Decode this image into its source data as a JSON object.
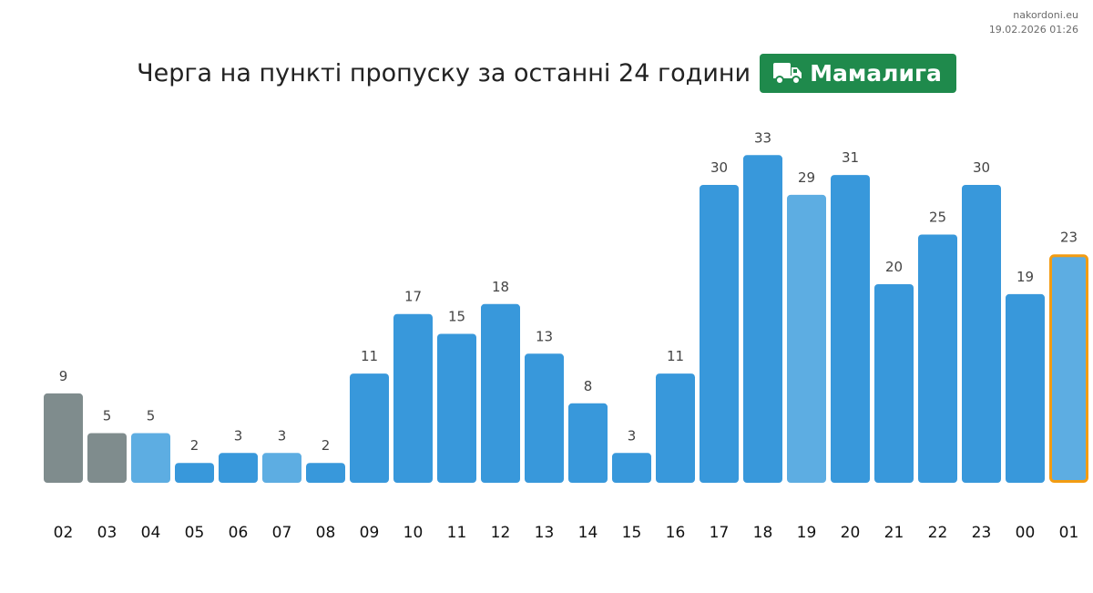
{
  "source": {
    "site": "nakordoni.eu",
    "timestamp": "19.02.2026 01:26"
  },
  "header": {
    "title": "Черга на пункті пропуску за останні 24 години",
    "badge_label": "Мамалига",
    "badge_icon": "truck-icon"
  },
  "colors": {
    "default": "#3898db",
    "light": "#5dade2",
    "past": "#7f8c8d",
    "highlight_border": "#f39c12",
    "badge_bg": "#1f8a4c"
  },
  "chart_data": {
    "type": "bar",
    "title": "Черга на пункті пропуску за останні 24 години",
    "xlabel": "",
    "ylabel": "",
    "categories": [
      "02",
      "03",
      "04",
      "05",
      "06",
      "07",
      "08",
      "09",
      "10",
      "11",
      "12",
      "13",
      "14",
      "15",
      "16",
      "17",
      "18",
      "19",
      "20",
      "21",
      "22",
      "23",
      "00",
      "01"
    ],
    "values": [
      9,
      5,
      5,
      2,
      3,
      3,
      2,
      11,
      17,
      15,
      18,
      13,
      8,
      3,
      11,
      30,
      33,
      29,
      31,
      20,
      25,
      30,
      19,
      23
    ],
    "bar_styles": [
      "past",
      "past",
      "light",
      "default",
      "default",
      "light",
      "default",
      "default",
      "default",
      "default",
      "default",
      "default",
      "default",
      "default",
      "default",
      "default",
      "default",
      "light",
      "default",
      "default",
      "default",
      "default",
      "default",
      "light"
    ],
    "highlighted_category": "01",
    "ylim": [
      0,
      33
    ],
    "grid": false,
    "legend": "none"
  }
}
